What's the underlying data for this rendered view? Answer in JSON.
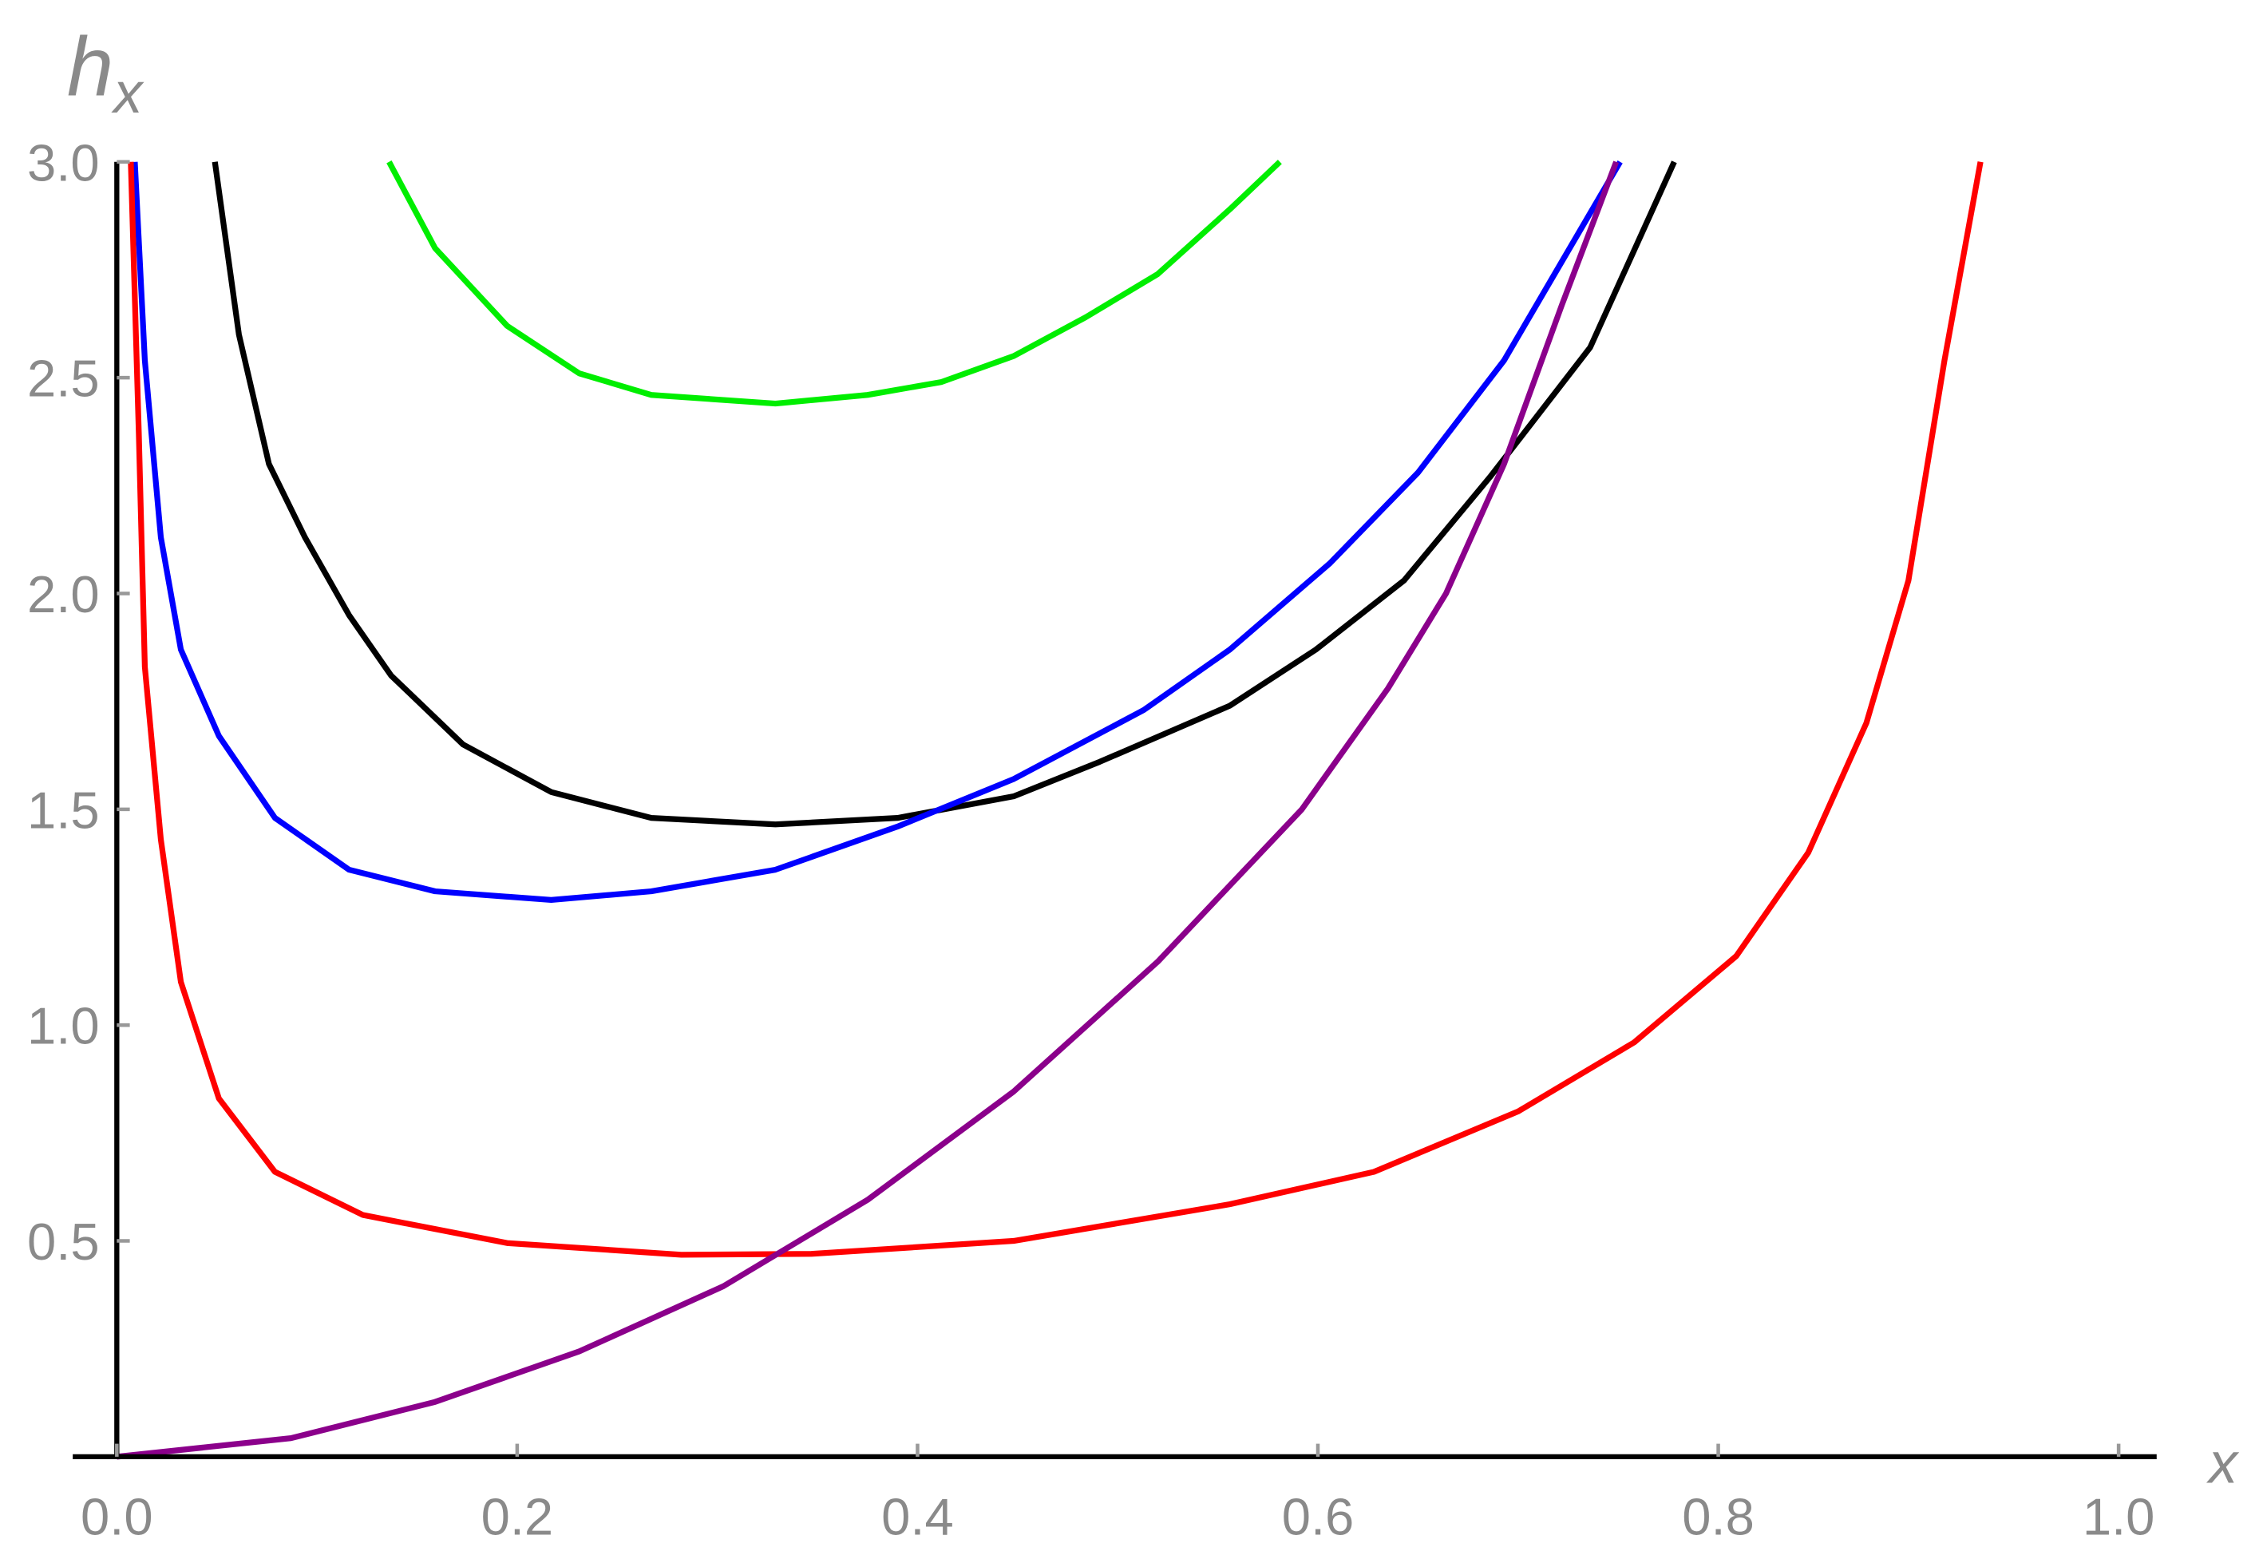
{
  "chart_data": {
    "type": "line",
    "x_label": "x",
    "y_label": "h",
    "y_label_subscript": "x",
    "xlim": [
      -0.022,
      1.019
    ],
    "ylim": [
      0,
      3
    ],
    "xticks": [
      {
        "value": 0,
        "label": "0.0"
      },
      0.2,
      0.4,
      0.6,
      0.8,
      {
        "value": 1,
        "label": "1.0"
      }
    ],
    "yticks": [
      0.5,
      {
        "value": 1,
        "label": "1.0"
      },
      1.5,
      {
        "value": 2,
        "label": "2.0"
      },
      2.5,
      {
        "value": 3,
        "label": "3.0"
      }
    ],
    "series": [
      {
        "color": "#00ee00",
        "x": [
          0.136,
          0.159,
          0.195,
          0.231,
          0.267,
          0.329,
          0.375,
          0.412,
          0.448,
          0.484,
          0.52,
          0.556,
          0.581
        ],
        "values": [
          3.0,
          2.8,
          2.62,
          2.51,
          2.46,
          2.44,
          2.46,
          2.49,
          2.55,
          2.64,
          2.74,
          2.89,
          3.0
        ]
      },
      {
        "color": "#000000",
        "x": [
          0.049,
          0.061,
          0.076,
          0.094,
          0.116,
          0.137,
          0.173,
          0.217,
          0.267,
          0.329,
          0.39,
          0.448,
          0.491,
          0.556,
          0.599,
          0.643,
          0.686,
          0.736,
          0.778
        ],
        "values": [
          3.0,
          2.6,
          2.3,
          2.13,
          1.95,
          1.81,
          1.65,
          1.54,
          1.48,
          1.465,
          1.48,
          1.53,
          1.61,
          1.74,
          1.87,
          2.03,
          2.27,
          2.57,
          3.0
        ]
      },
      {
        "color": "#0000ff",
        "x": [
          0.009,
          0.014,
          0.022,
          0.032,
          0.051,
          0.079,
          0.116,
          0.159,
          0.217,
          0.267,
          0.329,
          0.39,
          0.448,
          0.513,
          0.556,
          0.606,
          0.65,
          0.693,
          0.722,
          0.751
        ],
        "values": [
          3.0,
          2.54,
          2.13,
          1.87,
          1.67,
          1.48,
          1.36,
          1.31,
          1.29,
          1.31,
          1.36,
          1.46,
          1.57,
          1.73,
          1.87,
          2.07,
          2.28,
          2.54,
          2.77,
          3.0
        ]
      },
      {
        "color": "#ff0000",
        "x": [
          0.007,
          0.011,
          0.014,
          0.022,
          0.032,
          0.051,
          0.079,
          0.123,
          0.195,
          0.282,
          0.347,
          0.448,
          0.556,
          0.628,
          0.7,
          0.758,
          0.809,
          0.845,
          0.874,
          0.895,
          0.913,
          0.931
        ],
        "values": [
          3.0,
          2.37,
          1.83,
          1.43,
          1.1,
          0.83,
          0.66,
          0.56,
          0.495,
          0.468,
          0.47,
          0.5,
          0.585,
          0.66,
          0.8,
          0.96,
          1.16,
          1.4,
          1.7,
          2.03,
          2.54,
          3.0
        ]
      },
      {
        "color": "#8b008b",
        "x": [
          0,
          0.087,
          0.159,
          0.231,
          0.303,
          0.375,
          0.448,
          0.52,
          0.592,
          0.635,
          0.664,
          0.693,
          0.722,
          0.749
        ],
        "values": [
          0,
          0.043,
          0.127,
          0.244,
          0.395,
          0.595,
          0.846,
          1.147,
          1.5,
          1.78,
          2.0,
          2.3,
          2.67,
          3.0
        ]
      }
    ]
  }
}
